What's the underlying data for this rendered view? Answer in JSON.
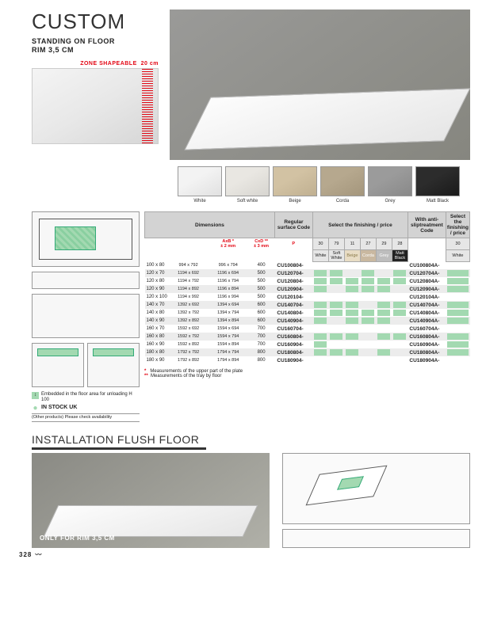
{
  "title": "CUSTOM",
  "subtitle1": "STANDING ON FLOOR",
  "subtitle2": "RIM 3,5 CM",
  "zone_label": "ZONE SHAPEABLE",
  "zone_val": "20 cm",
  "swatches": [
    {
      "label": "White",
      "color": "#f3f3f3"
    },
    {
      "label": "Soft white",
      "color": "#e9e7e2"
    },
    {
      "label": "Beige",
      "color": "#d2c2a3"
    },
    {
      "label": "Corda",
      "color": "#b6a88e"
    },
    {
      "label": "Grey",
      "color": "#9b9b9b"
    },
    {
      "label": "Matt Black",
      "color": "#2c2c2c"
    }
  ],
  "head": {
    "dim": "Dimensions",
    "reg": "Regular surface Code",
    "sel": "Select the finishing / price",
    "anti": "With anti-sliptreatment Code",
    "sel2": "Select the finishing / price",
    "axb": "AxB *",
    "axb2": "± 2 mm",
    "cxd": "CxD **",
    "cxd2": "± 3 mm",
    "p": "P",
    "codes": [
      "30",
      "79",
      "11",
      "27",
      "29",
      "28"
    ],
    "names": [
      "White",
      "Soft White",
      "Beige",
      "Corda",
      "Grey",
      "Matt Black"
    ],
    "code2": "30",
    "name2": "White"
  },
  "rows": [
    {
      "sz": "100 x 80",
      "ab": "994 x 792",
      "cd": "996 x 794",
      "p": "400",
      "code": "CU100804-",
      "f": [
        0,
        0,
        0,
        0,
        0,
        0
      ],
      "asc": "CU100804A-",
      "f2": 0
    },
    {
      "sz": "120 x 70",
      "ab": "1194 x 692",
      "cd": "1196 x 694",
      "p": "500",
      "code": "CU120704-",
      "f": [
        1,
        1,
        0,
        1,
        0,
        1
      ],
      "asc": "CU120704A-",
      "f2": 1
    },
    {
      "sz": "120 x 80",
      "ab": "1194 x 792",
      "cd": "1196 x 794",
      "p": "500",
      "code": "CU120804-",
      "f": [
        1,
        1,
        1,
        1,
        1,
        1
      ],
      "asc": "CU120804A-",
      "f2": 1
    },
    {
      "sz": "120 x 90",
      "ab": "1194 x 892",
      "cd": "1196 x 894",
      "p": "500",
      "code": "CU120904-",
      "f": [
        1,
        0,
        1,
        1,
        1,
        0
      ],
      "asc": "CU120904A-",
      "f2": 1
    },
    {
      "sz": "120 x 100",
      "ab": "1194 x 992",
      "cd": "1196 x 994",
      "p": "500",
      "code": "CU120104-",
      "f": [
        0,
        0,
        0,
        0,
        0,
        0
      ],
      "asc": "CU120104A-",
      "f2": 0
    },
    {
      "sz": "140 x 70",
      "ab": "1392 x 692",
      "cd": "1394 x 694",
      "p": "600",
      "code": "CU140704-",
      "f": [
        1,
        1,
        1,
        0,
        1,
        1
      ],
      "asc": "CU140704A-",
      "f2": 1
    },
    {
      "sz": "140 x 80",
      "ab": "1392 x 792",
      "cd": "1394 x 794",
      "p": "600",
      "code": "CU140804-",
      "f": [
        1,
        1,
        1,
        1,
        1,
        1
      ],
      "asc": "CU140804A-",
      "f2": 1
    },
    {
      "sz": "140 x 90",
      "ab": "1392 x 892",
      "cd": "1394 x 894",
      "p": "600",
      "code": "CU140904-",
      "f": [
        1,
        0,
        1,
        1,
        1,
        0
      ],
      "asc": "CU140904A-",
      "f2": 1
    },
    {
      "sz": "160 x 70",
      "ab": "1592 x 692",
      "cd": "1594 x 694",
      "p": "700",
      "code": "CU160704-",
      "f": [
        0,
        0,
        0,
        0,
        0,
        0
      ],
      "asc": "CU160704A-",
      "f2": 0
    },
    {
      "sz": "160 x 80",
      "ab": "1592 x 792",
      "cd": "1594 x 794",
      "p": "700",
      "code": "CU160804-",
      "f": [
        1,
        1,
        1,
        0,
        1,
        1
      ],
      "asc": "CU160804A-",
      "f2": 1
    },
    {
      "sz": "160 x 90",
      "ab": "1592 x 892",
      "cd": "1594 x 894",
      "p": "700",
      "code": "CU160904-",
      "f": [
        1,
        0,
        0,
        0,
        0,
        0
      ],
      "asc": "CU160904A-",
      "f2": 1
    },
    {
      "sz": "180 x 80",
      "ab": "1792 x 792",
      "cd": "1794 x 794",
      "p": "800",
      "code": "CU180804-",
      "f": [
        1,
        1,
        1,
        0,
        1,
        0
      ],
      "asc": "CU180804A-",
      "f2": 1
    },
    {
      "sz": "180 x 90",
      "ab": "1792 x 892",
      "cd": "1794 x 894",
      "p": "800",
      "code": "CU180904-",
      "f": [
        0,
        0,
        0,
        0,
        0,
        0
      ],
      "asc": "CU180904A-",
      "f2": 0
    }
  ],
  "note_embed": "Embedded in the floor area for unloading H 100",
  "stock": "IN STOCK UK",
  "stock_sub": "(Other products)\nPlease check availability",
  "meas1": "Measurements of the upper part of the plate",
  "meas2": "Measurements of the tray by floor",
  "install_title": "INSTALLATION FLUSH FLOOR",
  "install_note": "ONLY FOR RIM 3,5 CM",
  "pagenum": "328"
}
